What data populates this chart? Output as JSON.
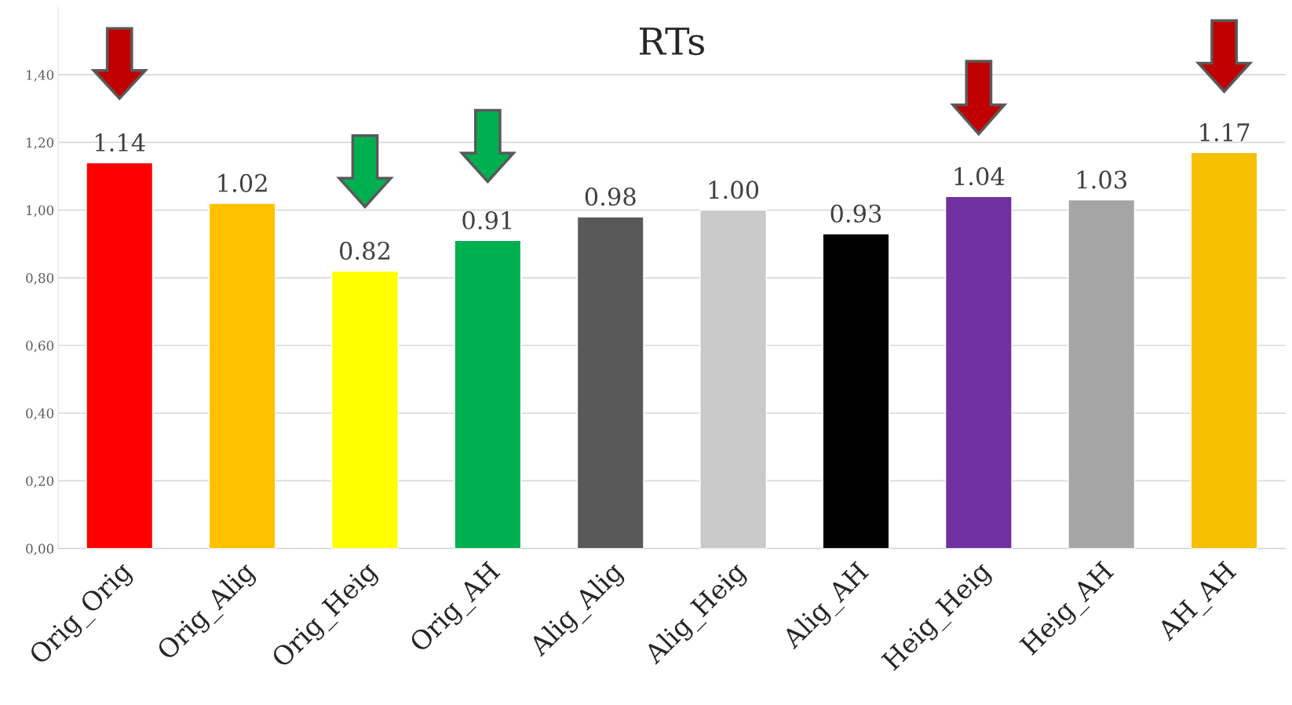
{
  "chart_data": {
    "type": "bar",
    "title": "RTs",
    "categories": [
      "Orig_Orig",
      "Orig_Alig",
      "Orig_Heig",
      "Orig_AH",
      "Alig_Alig",
      "Alig_Heig",
      "Alig_AH",
      "Heig_Heig",
      "Heig_AH",
      "AH_AH"
    ],
    "values": [
      1.14,
      1.02,
      0.82,
      0.91,
      0.98,
      1.0,
      0.93,
      1.04,
      1.03,
      1.17
    ],
    "value_labels": [
      "1.14",
      "1.02",
      "0.82",
      "0.91",
      "0.98",
      "1.00",
      "0.93",
      "1.04",
      "1.03",
      "1.17"
    ],
    "colors": [
      "#ff0000",
      "#ffc000",
      "#ffff00",
      "#00b050",
      "#595959",
      "#c9c9c9",
      "#000000",
      "#7030a0",
      "#a5a5a5",
      "#f5c000"
    ],
    "ylim": [
      0,
      1.6
    ],
    "yticks": [
      {
        "value": 0,
        "label": "0,00"
      },
      {
        "value": 0.2,
        "label": "0,20"
      },
      {
        "value": 0.4,
        "label": "0,40"
      },
      {
        "value": 0.6,
        "label": "0,60"
      },
      {
        "value": 0.8,
        "label": "0,80"
      },
      {
        "value": 1.0,
        "label": "1,00"
      },
      {
        "value": 1.2,
        "label": "1,20"
      },
      {
        "value": 1.4,
        "label": "1,40"
      }
    ],
    "grid": "y",
    "legend": false
  }
}
